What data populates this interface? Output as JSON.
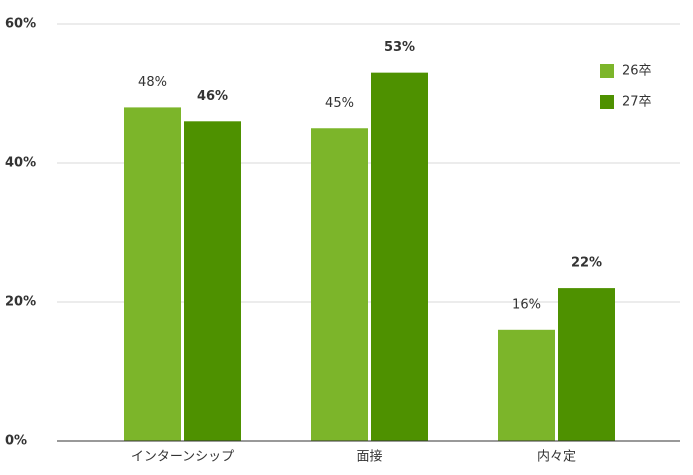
{
  "chart_data": {
    "type": "bar",
    "categories": [
      "インターンシップ",
      "面接",
      "内々定"
    ],
    "series": [
      {
        "name": "26卒",
        "color": "#7cb52a",
        "values": [
          48,
          45,
          16
        ],
        "value_labels": [
          "48%",
          "45%",
          "16%"
        ]
      },
      {
        "name": "27卒",
        "color": "#4e9100",
        "values": [
          46,
          53,
          22
        ],
        "value_labels": [
          "46%",
          "53%",
          "22%"
        ]
      }
    ],
    "ylim": [
      0,
      60
    ],
    "yticks": [
      {
        "value": 0,
        "label": "0%"
      },
      {
        "value": 20,
        "label": "20%"
      },
      {
        "value": 40,
        "label": "40%"
      },
      {
        "value": 60,
        "label": "60%"
      }
    ],
    "grid": true,
    "legend": "top-right"
  }
}
